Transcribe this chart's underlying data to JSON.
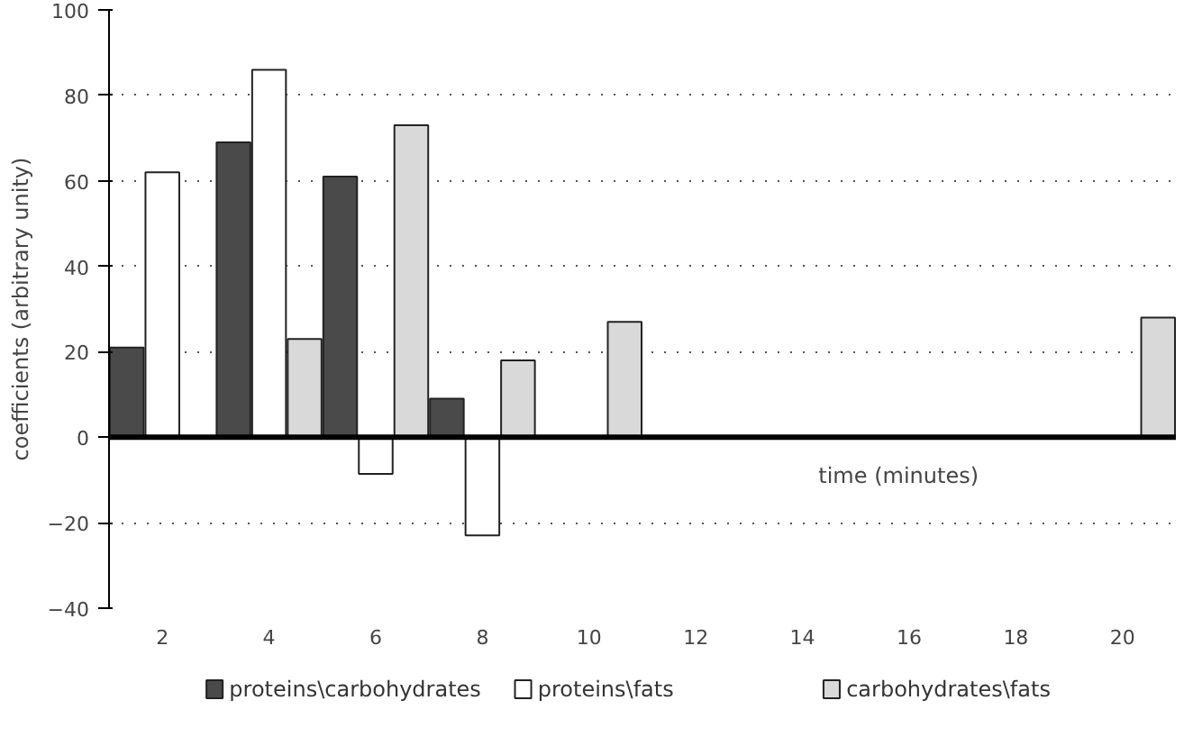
{
  "chart_data": {
    "type": "bar",
    "xlabel": "time (minutes)",
    "ylabel": "coefficients (arbitrary unity)",
    "categories": [
      "2",
      "4",
      "6",
      "8",
      "10",
      "12",
      "14",
      "16",
      "18",
      "20"
    ],
    "series": [
      {
        "name": "proteins\\carbohydrates",
        "color": "#4a4a4a",
        "values": [
          21,
          69,
          61,
          9,
          null,
          null,
          null,
          null,
          null,
          null
        ]
      },
      {
        "name": "proteins\\fats",
        "color": "#ffffff",
        "values": [
          62,
          86,
          -8.6,
          -23,
          null,
          null,
          null,
          null,
          null,
          null
        ]
      },
      {
        "name": "carbohydrates\\fats",
        "color": "#d9d9d9",
        "values": [
          null,
          23,
          73,
          18,
          27,
          null,
          null,
          null,
          null,
          28
        ]
      }
    ],
    "ylim": [
      -40,
      100
    ],
    "yticks": [
      -40,
      -20,
      0,
      20,
      40,
      60,
      80,
      100
    ],
    "grid": "y",
    "legend": "bottom"
  }
}
